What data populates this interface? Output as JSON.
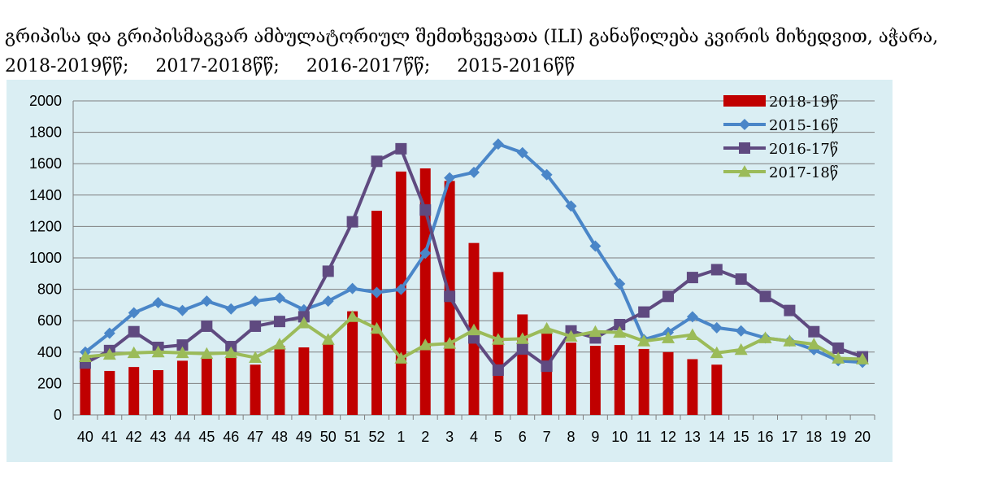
{
  "title": {
    "line1": "გრიპისა და გრიპისმაგვარ ამბულატორიულ შემთხვევათა (ILI) განაწილება კვირის მიხედვით, აჭარა,",
    "periods": [
      "2018-2019წწ;",
      "2017-2018წწ;",
      "2016-2017წწ;",
      "2015-2016წწ"
    ]
  },
  "colors": {
    "background": "#daeef3",
    "bar": "#c00000",
    "line_2015_16": "#4a86c8",
    "line_2016_17": "#5f4a80",
    "line_2017_18": "#9bbb59",
    "grid": "#7f7f7f"
  },
  "chart_data": {
    "type": "bar+line",
    "grid": true,
    "legend_position": "top-right",
    "ylim": [
      0,
      2000
    ],
    "yticks": [
      0,
      200,
      400,
      600,
      800,
      1000,
      1200,
      1400,
      1600,
      1800,
      2000
    ],
    "categories": [
      "40",
      "41",
      "42",
      "43",
      "44",
      "45",
      "46",
      "47",
      "48",
      "49",
      "50",
      "51",
      "52",
      "1",
      "2",
      "3",
      "4",
      "5",
      "6",
      "7",
      "8",
      "9",
      "10",
      "11",
      "12",
      "13",
      "14",
      "15",
      "16",
      "17",
      "18",
      "19",
      "20"
    ],
    "series": [
      {
        "name": "2018-19წ",
        "kind": "bar",
        "marker": "none",
        "values": [
          300,
          280,
          305,
          285,
          345,
          360,
          370,
          320,
          440,
          430,
          450,
          660,
          1300,
          1550,
          1570,
          1490,
          1095,
          910,
          640,
          520,
          460,
          440,
          445,
          420,
          400,
          355,
          320,
          null,
          null,
          null,
          null,
          null,
          null
        ]
      },
      {
        "name": "2015-16წ",
        "kind": "line",
        "marker": "diamond",
        "values": [
          400,
          520,
          650,
          715,
          665,
          725,
          675,
          725,
          745,
          670,
          725,
          805,
          780,
          800,
          1030,
          1510,
          1545,
          1725,
          1670,
          1530,
          1330,
          1075,
          835,
          480,
          525,
          625,
          555,
          535,
          490,
          470,
          415,
          345,
          335
        ]
      },
      {
        "name": "2016-17წ",
        "kind": "line",
        "marker": "square",
        "values": [
          330,
          410,
          530,
          430,
          445,
          565,
          435,
          565,
          595,
          625,
          915,
          1230,
          1615,
          1695,
          1305,
          755,
          490,
          285,
          420,
          310,
          535,
          490,
          575,
          655,
          755,
          875,
          925,
          865,
          755,
          665,
          530,
          425,
          370
        ]
      },
      {
        "name": "2017-18წ",
        "kind": "line",
        "marker": "triangle",
        "values": [
          370,
          385,
          395,
          400,
          395,
          390,
          395,
          365,
          450,
          585,
          480,
          625,
          550,
          360,
          445,
          455,
          540,
          480,
          485,
          550,
          500,
          530,
          525,
          470,
          490,
          510,
          395,
          415,
          490,
          470,
          450,
          360,
          355
        ]
      }
    ]
  }
}
